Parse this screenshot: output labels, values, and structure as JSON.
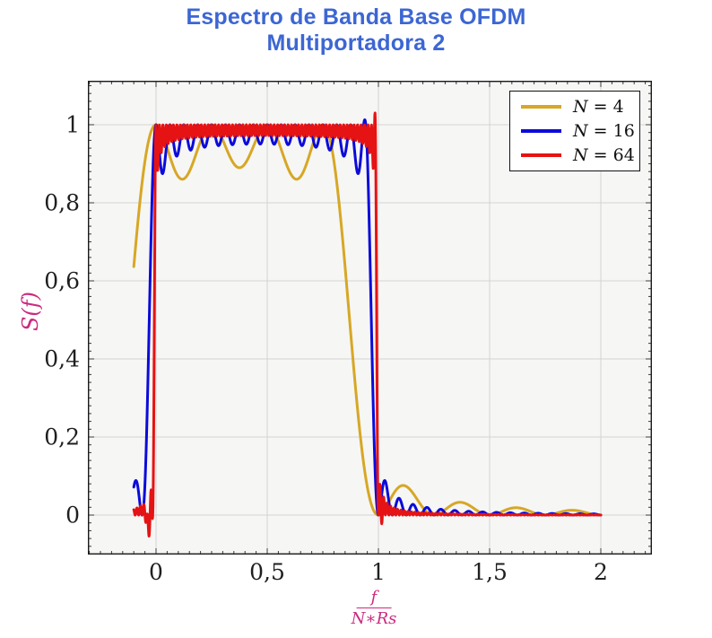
{
  "title": {
    "line1": "Espectro de Banda Base OFDM",
    "line2": "Multiportadora 2",
    "color": "#3c66d4"
  },
  "chart_data": {
    "type": "line",
    "title": "Espectro de Banda Base OFDM Multiportadora 2",
    "ylabel": "S(f)",
    "xlabel_numerator": "f",
    "xlabel_denominator": "N∗Rs",
    "axis_label_color": "#cb2b7f",
    "tick_label_color": "#1f1f1f",
    "xlim": [
      -0.3065,
      2.2298
    ],
    "ylim": [
      -0.1011,
      1.1126
    ],
    "x_data_range": [
      -0.1,
      2.0
    ],
    "x_major_ticks": {
      "values": [
        0,
        0.5,
        1,
        1.5,
        2
      ],
      "labels": [
        "0",
        "0,5",
        "1",
        "1,5",
        "2"
      ]
    },
    "y_major_ticks": {
      "values": [
        0,
        0.2,
        0.4,
        0.6,
        0.8,
        1
      ],
      "labels": [
        "0",
        "0,2",
        "0,4",
        "0,6",
        "0,8",
        "1"
      ]
    },
    "x_minor_step": 0.05,
    "y_minor_step": 0.02,
    "grid": "major",
    "legend_position": "top-right",
    "plot_bg": "#f6f6f5",
    "grid_color": "#d4d4d4",
    "frame_color": "#1a1a1a",
    "tick_color": "#3c3c3c",
    "model": "S(x) = sum_{k=0}^{N-1} sinc^2(N x - k), sinc(t)=sin(pi t)/(pi t); plateau ~1 over 0<=x<=1-1/N with ripple dips (N=4: ~0.86, N=16: ~0.91, N=64: ~0.97), steep edges at x=0 and x=1, decaying sidelobes with period 1/N in tails",
    "series": [
      {
        "name": "N = 4",
        "N": 4,
        "color": "#d7a725",
        "width": 3,
        "ripple_extra": 0.012,
        "step": 0.002,
        "extras": []
      },
      {
        "name": "N = 16",
        "N": 16,
        "color": "#0b0bd9",
        "width": 3,
        "ripple_extra": 0.025,
        "step": 0.0015,
        "extras": [
          {
            "a": 0.018,
            "x0": 0.945,
            "w": 0.012
          }
        ]
      },
      {
        "name": "N = 64",
        "N": 64,
        "color": "#e51313",
        "width": 3,
        "ripple_extra": 0.022,
        "step": 0.0012,
        "extras": [
          {
            "a": -0.055,
            "x0": -0.033,
            "w": 0.013
          },
          {
            "a": 0.032,
            "x0": 0.9855,
            "w": 0.006
          },
          {
            "a": -0.03,
            "x0": 1.012,
            "w": 0.006
          }
        ]
      }
    ],
    "notable_values": {
      "N4_at_x_-0.1": 0.64,
      "N16_at_x_-0.1": 0.07,
      "N64_at_x_-0.1": 0.01,
      "N4_first_tail_sidelobe": {
        "x": 1.125,
        "y": 0.075
      },
      "N16_first_tail_sidelobe": {
        "x": 1.03,
        "y": 0.085
      },
      "N64_undershoot_min": {
        "x": -0.03,
        "y": -0.045
      },
      "N64_overshoot_peak": {
        "x": 0.985,
        "y": 1.02
      }
    }
  }
}
